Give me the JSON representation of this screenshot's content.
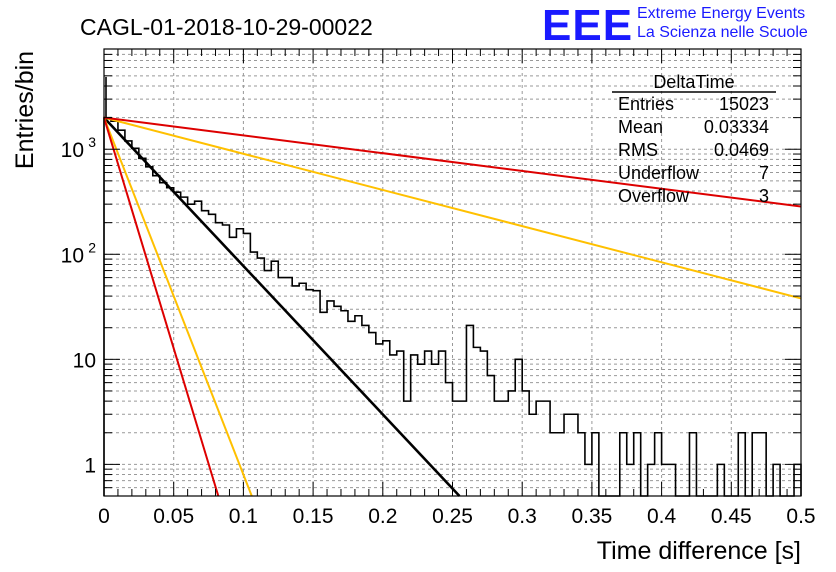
{
  "header": {
    "run_title": "CAGL-01-2018-10-29-00022",
    "logo_text": "EEE",
    "logo_line1": "Extreme Energy Events",
    "logo_line2": "La Scienza nelle Scuole"
  },
  "stats_box": {
    "title": "DeltaTime",
    "rows": [
      {
        "label": "Entries",
        "value": "15023"
      },
      {
        "label": "Mean",
        "value": "0.03334"
      },
      {
        "label": "RMS",
        "value": "0.0469"
      },
      {
        "label": "Underflow",
        "value": "7"
      },
      {
        "label": "Overflow",
        "value": "3"
      }
    ]
  },
  "chart_data": {
    "type": "histogram",
    "title": "CAGL-01-2018-10-29-00022",
    "xlabel": "Time difference [s]",
    "ylabel": "Entries/bin",
    "xlim": [
      0,
      0.5
    ],
    "ylim": [
      0.5,
      9000
    ],
    "yscale": "log",
    "grid": true,
    "x_ticks": [
      {
        "v": 0,
        "label": "0"
      },
      {
        "v": 0.05,
        "label": "0.05"
      },
      {
        "v": 0.1,
        "label": "0.1"
      },
      {
        "v": 0.15,
        "label": "0.15"
      },
      {
        "v": 0.2,
        "label": "0.2"
      },
      {
        "v": 0.25,
        "label": "0.25"
      },
      {
        "v": 0.3,
        "label": "0.3"
      },
      {
        "v": 0.35,
        "label": "0.35"
      },
      {
        "v": 0.4,
        "label": "0.4"
      },
      {
        "v": 0.45,
        "label": "0.45"
      },
      {
        "v": 0.5,
        "label": "0.5"
      }
    ],
    "y_ticks": [
      {
        "v": 1,
        "label": "1"
      },
      {
        "v": 10,
        "label": "10"
      },
      {
        "v": 100,
        "label": "10",
        "sup": "2"
      },
      {
        "v": 1000,
        "label": "10",
        "sup": "3"
      }
    ],
    "bin_width": 0.005,
    "histogram": [
      2000,
      1850,
      1520,
      1200,
      1020,
      820,
      680,
      560,
      480,
      430,
      390,
      350,
      300,
      320,
      260,
      240,
      200,
      190,
      145,
      175,
      158,
      105,
      92,
      70,
      86,
      60,
      60,
      50,
      53,
      46,
      45,
      28,
      36,
      32,
      29,
      23,
      26,
      21,
      18,
      14,
      15,
      11,
      12,
      4,
      11,
      9,
      12,
      9,
      12,
      6,
      4,
      4,
      21,
      13,
      12,
      7,
      4,
      4,
      5,
      10,
      5,
      3,
      4,
      4,
      2,
      2,
      3,
      3,
      2,
      1,
      2,
      0,
      0,
      0,
      2,
      1,
      2,
      0,
      1,
      2,
      1,
      1,
      0,
      0,
      2,
      0,
      0,
      0,
      1,
      0,
      0,
      2,
      0,
      2,
      2,
      0,
      1,
      0,
      0,
      1,
      0
    ],
    "fits": [
      {
        "color": "#000000",
        "amplitude": 2000,
        "x_end": 0.255,
        "y_end": 0.5
      },
      {
        "color": "#ffc000",
        "amplitude": 2000,
        "x_end": 0.106,
        "y_end": 0.5
      },
      {
        "color": "#ffc000",
        "amplitude": 2000,
        "x_end": 0.5,
        "y_end": 38
      },
      {
        "color": "#dd0000",
        "amplitude": 2000,
        "x_end": 0.082,
        "y_end": 0.5
      },
      {
        "color": "#dd0000",
        "amplitude": 2000,
        "x_end": 0.5,
        "y_end": 285
      }
    ]
  }
}
